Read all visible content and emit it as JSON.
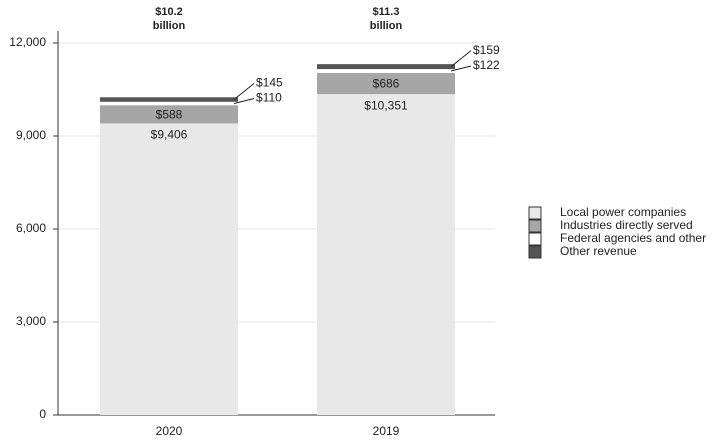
{
  "chart_data": {
    "type": "stacked_bar",
    "categories": [
      "2020",
      "2019"
    ],
    "series": [
      {
        "name": "Local power companies",
        "color": "#e8e8e8",
        "values": [
          9406,
          10351
        ],
        "value_labels": [
          "$9,406",
          "$10,351"
        ]
      },
      {
        "name": "Industries directly served",
        "color": "#a6a6a6",
        "values": [
          588,
          686
        ],
        "value_labels": [
          "$588",
          "$686"
        ]
      },
      {
        "name": "Federal agencies and other",
        "color": "#ffffff",
        "values": [
          110,
          122
        ],
        "value_labels": [
          "$110",
          "$122"
        ]
      },
      {
        "name": "Other revenue",
        "color": "#555555",
        "values": [
          145,
          159
        ],
        "value_labels": [
          "$145",
          "$159"
        ]
      }
    ],
    "annotations": [
      [
        "$10.2",
        "billion"
      ],
      [
        "$11.3",
        "billion"
      ]
    ],
    "ylim": [
      0,
      12000
    ],
    "yticks": [
      0,
      {
        "value": 3000,
        "label": "3,000"
      },
      {
        "value": 6000,
        "label": "6,000"
      },
      {
        "value": 9000,
        "label": "9,000"
      },
      {
        "value": 12000,
        "label": "12,000"
      }
    ],
    "grid": true
  }
}
